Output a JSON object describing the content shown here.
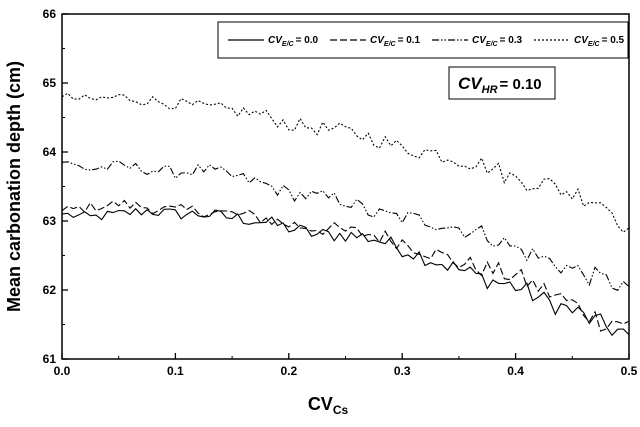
{
  "chart_data": {
    "type": "line",
    "title": "",
    "xlabel": "CV",
    "xlabel_sub": "Cs",
    "ylabel": "Mean carbonation depth (cm)",
    "xlim": [
      0,
      0.5
    ],
    "ylim": [
      61,
      66
    ],
    "xticks": [
      "0.0",
      "0.1",
      "0.2",
      "0.3",
      "0.4",
      "0.5"
    ],
    "yticks": [
      "61",
      "62",
      "63",
      "64",
      "65",
      "66"
    ],
    "grid": false,
    "legend_position": "top-right",
    "annotation": {
      "prefix": "CV",
      "sub": "HR",
      "value": "= 0.10"
    },
    "series": [
      {
        "name": "CV E/C = 0.0",
        "legend": {
          "prefix": "CV",
          "sub": "E/C",
          "value": "= 0.0"
        },
        "line_style": "solid",
        "x": [
          0,
          0.025,
          0.05,
          0.075,
          0.1,
          0.125,
          0.15,
          0.175,
          0.2,
          0.225,
          0.25,
          0.275,
          0.3,
          0.325,
          0.35,
          0.375,
          0.4,
          0.425,
          0.45,
          0.475,
          0.5
        ],
        "y": [
          63.1,
          63.05,
          63.1,
          63.15,
          63.1,
          63.1,
          63.05,
          63.0,
          62.9,
          62.8,
          62.8,
          62.75,
          62.6,
          62.45,
          62.3,
          62.15,
          62.05,
          61.85,
          61.7,
          61.5,
          61.35
        ]
      },
      {
        "name": "CV E/C = 0.1",
        "legend": {
          "prefix": "CV",
          "sub": "E/C",
          "value": "= 0.1"
        },
        "line_style": "dashed",
        "x": [
          0,
          0.025,
          0.05,
          0.075,
          0.1,
          0.125,
          0.15,
          0.175,
          0.2,
          0.225,
          0.25,
          0.275,
          0.3,
          0.325,
          0.35,
          0.375,
          0.4,
          0.425,
          0.45,
          0.475,
          0.5
        ],
        "y": [
          63.15,
          63.2,
          63.25,
          63.2,
          63.15,
          63.15,
          63.1,
          63.05,
          62.95,
          62.9,
          62.85,
          62.8,
          62.7,
          62.55,
          62.4,
          62.3,
          62.2,
          62.0,
          61.8,
          61.55,
          61.55
        ]
      },
      {
        "name": "CV E/C = 0.3",
        "legend": {
          "prefix": "CV",
          "sub": "E/C",
          "value": "= 0.3"
        },
        "line_style": "dash-dot-dot",
        "x": [
          0,
          0.025,
          0.05,
          0.075,
          0.1,
          0.125,
          0.15,
          0.175,
          0.2,
          0.225,
          0.25,
          0.275,
          0.3,
          0.325,
          0.35,
          0.375,
          0.4,
          0.425,
          0.45,
          0.475,
          0.5
        ],
        "y": [
          63.85,
          63.75,
          63.8,
          63.75,
          63.7,
          63.75,
          63.65,
          63.55,
          63.4,
          63.35,
          63.3,
          63.1,
          63.05,
          63.0,
          62.9,
          62.8,
          62.6,
          62.45,
          62.3,
          62.15,
          62.05
        ]
      },
      {
        "name": "CV E/C = 0.5",
        "legend": {
          "prefix": "CV",
          "sub": "E/C",
          "value": "= 0.5"
        },
        "line_style": "dotted",
        "x": [
          0,
          0.025,
          0.05,
          0.075,
          0.1,
          0.125,
          0.15,
          0.175,
          0.2,
          0.225,
          0.25,
          0.275,
          0.3,
          0.325,
          0.35,
          0.375,
          0.4,
          0.425,
          0.45,
          0.475,
          0.5
        ],
        "y": [
          64.8,
          64.75,
          64.8,
          64.75,
          64.7,
          64.65,
          64.6,
          64.55,
          64.4,
          64.35,
          64.3,
          64.2,
          64.05,
          64.0,
          63.9,
          63.8,
          63.6,
          63.55,
          63.4,
          63.3,
          62.9
        ]
      }
    ]
  }
}
